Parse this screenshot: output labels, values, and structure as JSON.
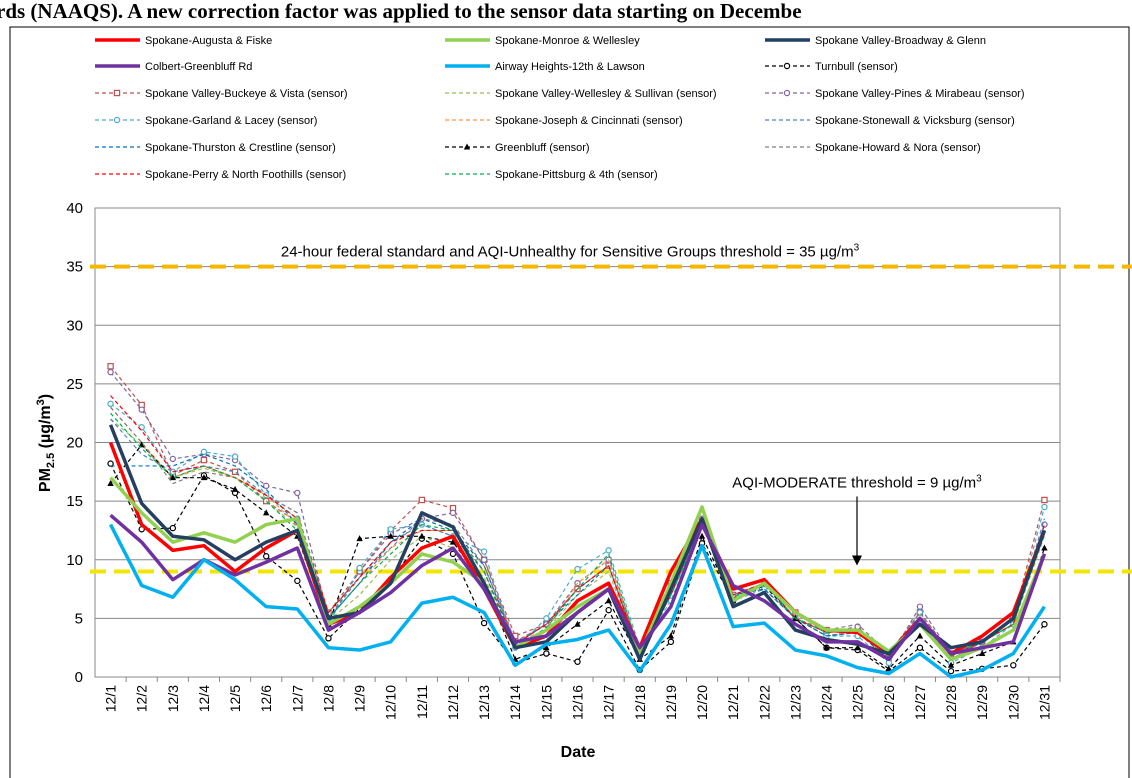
{
  "header": {
    "text": "rds (NAAQS). A new correction factor was applied to the sensor data starting on Decembe"
  },
  "chart_data": {
    "type": "line",
    "xlabel": "Date",
    "ylabel": {
      "main": "PM",
      "sub": "2.5",
      "rest": " (µg/m",
      "sup": "3",
      "end": ")"
    },
    "categories": [
      "12/1",
      "12/2",
      "12/3",
      "12/4",
      "12/5",
      "12/6",
      "12/7",
      "12/8",
      "12/9",
      "12/10",
      "12/11",
      "12/12",
      "12/13",
      "12/14",
      "12/15",
      "12/16",
      "12/17",
      "12/18",
      "12/19",
      "12/20",
      "12/21",
      "12/22",
      "12/23",
      "12/24",
      "12/25",
      "12/26",
      "12/27",
      "12/28",
      "12/29",
      "12/30",
      "12/31"
    ],
    "ylim": [
      0,
      40
    ],
    "yticks": [
      0,
      5,
      10,
      15,
      20,
      25,
      30,
      35,
      40
    ],
    "grid": true,
    "thresholds": [
      {
        "value": 35,
        "color": "#f5b800",
        "text": "24-hour federal standard and AQI-Unhealthy for Sensitive Groups threshold = 35 µg/m",
        "sup": "3"
      },
      {
        "value": 9,
        "color": "#f2e600",
        "text": "AQI-MODERATE  threshold = 9 µg/m",
        "sup": "3"
      }
    ],
    "series": [
      {
        "name": "Spokane-Augusta & Fiske",
        "color": "#ff0000",
        "style": "solid",
        "values": [
          20,
          13,
          10.8,
          11.2,
          9,
          11,
          12.5,
          4.5,
          5.5,
          8.5,
          11,
          12,
          7.5,
          2.5,
          3.5,
          6.5,
          8,
          2.5,
          9,
          13.5,
          7.5,
          8.3,
          5.5,
          4,
          3.8,
          2,
          5,
          2,
          3.5,
          5.5,
          12.5
        ]
      },
      {
        "name": "Spokane-Monroe & Wellesley",
        "color": "#92d050",
        "style": "solid",
        "values": [
          17,
          14,
          11.5,
          12.3,
          11.5,
          13,
          13.5,
          4.5,
          6,
          8,
          10.5,
          9.8,
          8,
          2.5,
          4,
          6,
          7.5,
          2,
          8,
          14.5,
          6.5,
          8,
          5.5,
          4,
          4,
          2.2,
          4.5,
          1.5,
          2.5,
          4,
          10.5
        ]
      },
      {
        "name": "Spokane Valley-Broadway & Glenn",
        "color": "#243f60",
        "style": "solid",
        "values": [
          21.5,
          14.8,
          12,
          11.7,
          10,
          11.5,
          12.5,
          5,
          5.5,
          8,
          14,
          12.8,
          8,
          2.5,
          3,
          5.5,
          7.5,
          1.5,
          7.5,
          13.5,
          6,
          7.2,
          4,
          3.2,
          2.8,
          2,
          4.5,
          2.5,
          3,
          5,
          12.5
        ]
      },
      {
        "name": "Colbert-Greenbluff Rd",
        "color": "#7030a0",
        "style": "solid",
        "values": [
          13.8,
          11.5,
          8.3,
          10,
          8.7,
          9.8,
          11,
          4,
          5.5,
          7.2,
          9.5,
          11,
          7.5,
          3,
          3.5,
          5.5,
          7.5,
          2.5,
          6,
          13,
          7.8,
          6.5,
          4.5,
          3,
          3,
          1.5,
          5,
          2,
          2.5,
          3,
          10.5
        ]
      },
      {
        "name": "Airway Heights-12th & Lawson",
        "color": "#00b0f0",
        "style": "solid",
        "values": [
          13,
          7.8,
          6.8,
          10,
          8.3,
          6,
          5.8,
          2.5,
          2.3,
          3,
          6.3,
          6.8,
          5.5,
          1,
          2.8,
          3.2,
          4,
          0.5,
          4.5,
          11.2,
          4.3,
          4.6,
          2.3,
          1.8,
          0.8,
          0.3,
          2,
          0,
          0.6,
          2,
          6
        ]
      },
      {
        "name": "Turnbull (sensor)",
        "color": "#000000",
        "style": "dashed",
        "marker": "circle",
        "values": [
          18.2,
          12.6,
          12.7,
          17.2,
          15.7,
          10.3,
          8.2,
          3.3,
          5.8,
          8.3,
          11.8,
          10.5,
          4.6,
          1.2,
          2,
          1.3,
          5.7,
          0.6,
          3,
          11.4,
          6.5,
          7.8,
          5,
          2.5,
          2.3,
          0.5,
          2.5,
          0.5,
          0.7,
          1,
          4.5
        ]
      },
      {
        "name": "Spokane Valley-Buckeye & Vista (sensor)",
        "color": "#c0504d",
        "style": "dashed",
        "marker": "square",
        "values": [
          26.5,
          23.2,
          17.2,
          18.5,
          17.5,
          15,
          13.2,
          5.5,
          9,
          12.5,
          15.1,
          14.4,
          10,
          3.5,
          4.5,
          7.5,
          9.5,
          2,
          8,
          13,
          7,
          8,
          5.5,
          4,
          4,
          2,
          5.5,
          2,
          3,
          5,
          15.1
        ]
      },
      {
        "name": "Spokane Valley-Wellesley & Sullivan (sensor)",
        "color": "#9bbb59",
        "style": "dashed",
        "values": [
          22,
          19.8,
          17,
          17.8,
          17,
          15,
          12.8,
          4.8,
          7,
          10,
          12,
          11,
          8.5,
          2.8,
          4,
          7,
          9,
          2,
          7,
          13,
          7,
          8,
          5,
          3.8,
          4,
          2,
          5,
          1.5,
          3,
          4.5,
          12
        ]
      },
      {
        "name": "Spokane Valley-Pines & Mirabeau (sensor)",
        "color": "#8064a2",
        "style": "dashed",
        "marker": "circle",
        "values": [
          26,
          22.8,
          18.6,
          19,
          18.5,
          16.3,
          15.7,
          5,
          9,
          12.2,
          13.5,
          14,
          10,
          3,
          4.5,
          8,
          10,
          2.3,
          7.5,
          13.5,
          7,
          7.5,
          5,
          3.8,
          4.3,
          1.5,
          6,
          2,
          3,
          4.5,
          13
        ]
      },
      {
        "name": "Spokane-Garland & Lacey (sensor)",
        "color": "#4bacc6",
        "style": "dashed",
        "marker": "circle",
        "values": [
          23.3,
          21.3,
          17.5,
          19.2,
          18.8,
          15.5,
          13.5,
          4.5,
          9.3,
          12.6,
          13,
          12,
          10.7,
          2.5,
          5,
          9.2,
          10.8,
          2.5,
          6.5,
          13,
          6.5,
          7.5,
          5,
          3.5,
          3.5,
          1.2,
          5.5,
          1.2,
          2.5,
          4.5,
          14.5
        ]
      },
      {
        "name": "Spokane-Joseph & Cincinnati (sensor)",
        "color": "#f79646",
        "style": "dashed",
        "values": [
          23,
          20,
          17,
          18,
          17,
          15.5,
          13,
          5,
          8,
          11,
          12.5,
          12.5,
          9.5,
          3,
          4,
          8,
          10,
          2,
          7,
          13,
          7,
          8,
          5,
          3.5,
          4,
          1.5,
          5,
          1.5,
          3,
          4.5,
          13
        ]
      },
      {
        "name": "Spokane-Stonewall & Vicksburg (sensor)",
        "color": "#4f81bd",
        "style": "dashed",
        "values": [
          22,
          19,
          17.5,
          18,
          17.5,
          15.5,
          14,
          5,
          8.5,
          11.5,
          13,
          12,
          9,
          2.8,
          4.5,
          7.5,
          9.5,
          2,
          7,
          13.3,
          7,
          7.5,
          5,
          3.5,
          3.8,
          1.5,
          5,
          1.5,
          3,
          4.5,
          13.5
        ]
      },
      {
        "name": "Spokane-Thurston & Crestline (sensor)",
        "color": "#0070c0",
        "style": "dashed",
        "values": [
          18,
          18,
          18,
          19,
          18,
          16,
          13,
          5,
          8,
          11.5,
          13.5,
          12.5,
          9.5,
          2.8,
          4.5,
          7,
          9.5,
          2,
          7,
          13,
          7,
          7.5,
          5,
          3.5,
          3.8,
          1.5,
          5,
          1.5,
          3,
          5,
          13
        ]
      },
      {
        "name": "Greenbluff (sensor)",
        "color": "#000000",
        "style": "dashed",
        "marker": "triangle",
        "values": [
          16.5,
          19.8,
          17,
          17,
          16,
          14,
          12,
          4.5,
          11.8,
          12,
          12,
          11.5,
          8,
          1.5,
          2.5,
          4.5,
          6.5,
          1.5,
          3.5,
          12,
          6.5,
          8,
          5,
          2.5,
          2.5,
          0.7,
          3.5,
          1,
          2,
          3,
          11
        ]
      },
      {
        "name": "Spokane-Howard & Nora (sensor)",
        "color": "#7f7f7f",
        "style": "dashed",
        "values": [
          23,
          20,
          16.5,
          17.5,
          17,
          15.5,
          14,
          5.5,
          8.5,
          11,
          13.5,
          13,
          9.5,
          3,
          4.5,
          7.5,
          9.5,
          2.2,
          7,
          13,
          7,
          8,
          5,
          4,
          4.5,
          2,
          5.5,
          2,
          3,
          4.5,
          13
        ]
      },
      {
        "name": "Spokane-Perry & North Foothills (sensor)",
        "color": "#ff0000",
        "style": "dashed",
        "values": [
          24,
          21,
          17.5,
          18,
          17,
          15.5,
          13.5,
          5.5,
          8.5,
          11.5,
          12.5,
          12.5,
          9,
          2.8,
          4.5,
          7.5,
          9.5,
          2,
          7,
          13.5,
          7,
          8,
          5,
          3.8,
          4,
          1.8,
          5,
          1.8,
          3,
          4.5,
          13
        ]
      },
      {
        "name": "Spokane-Pittsburg & 4th (sensor)",
        "color": "#00b050",
        "style": "dashed",
        "values": [
          22.5,
          19.5,
          17,
          18,
          17,
          15,
          12.5,
          5,
          8,
          10.5,
          13,
          12.5,
          9,
          2.5,
          4.2,
          7.5,
          10.5,
          2,
          7,
          13,
          6.8,
          8,
          5,
          3.8,
          4,
          1.8,
          5,
          1.8,
          3,
          4.5,
          12.5
        ]
      }
    ]
  }
}
